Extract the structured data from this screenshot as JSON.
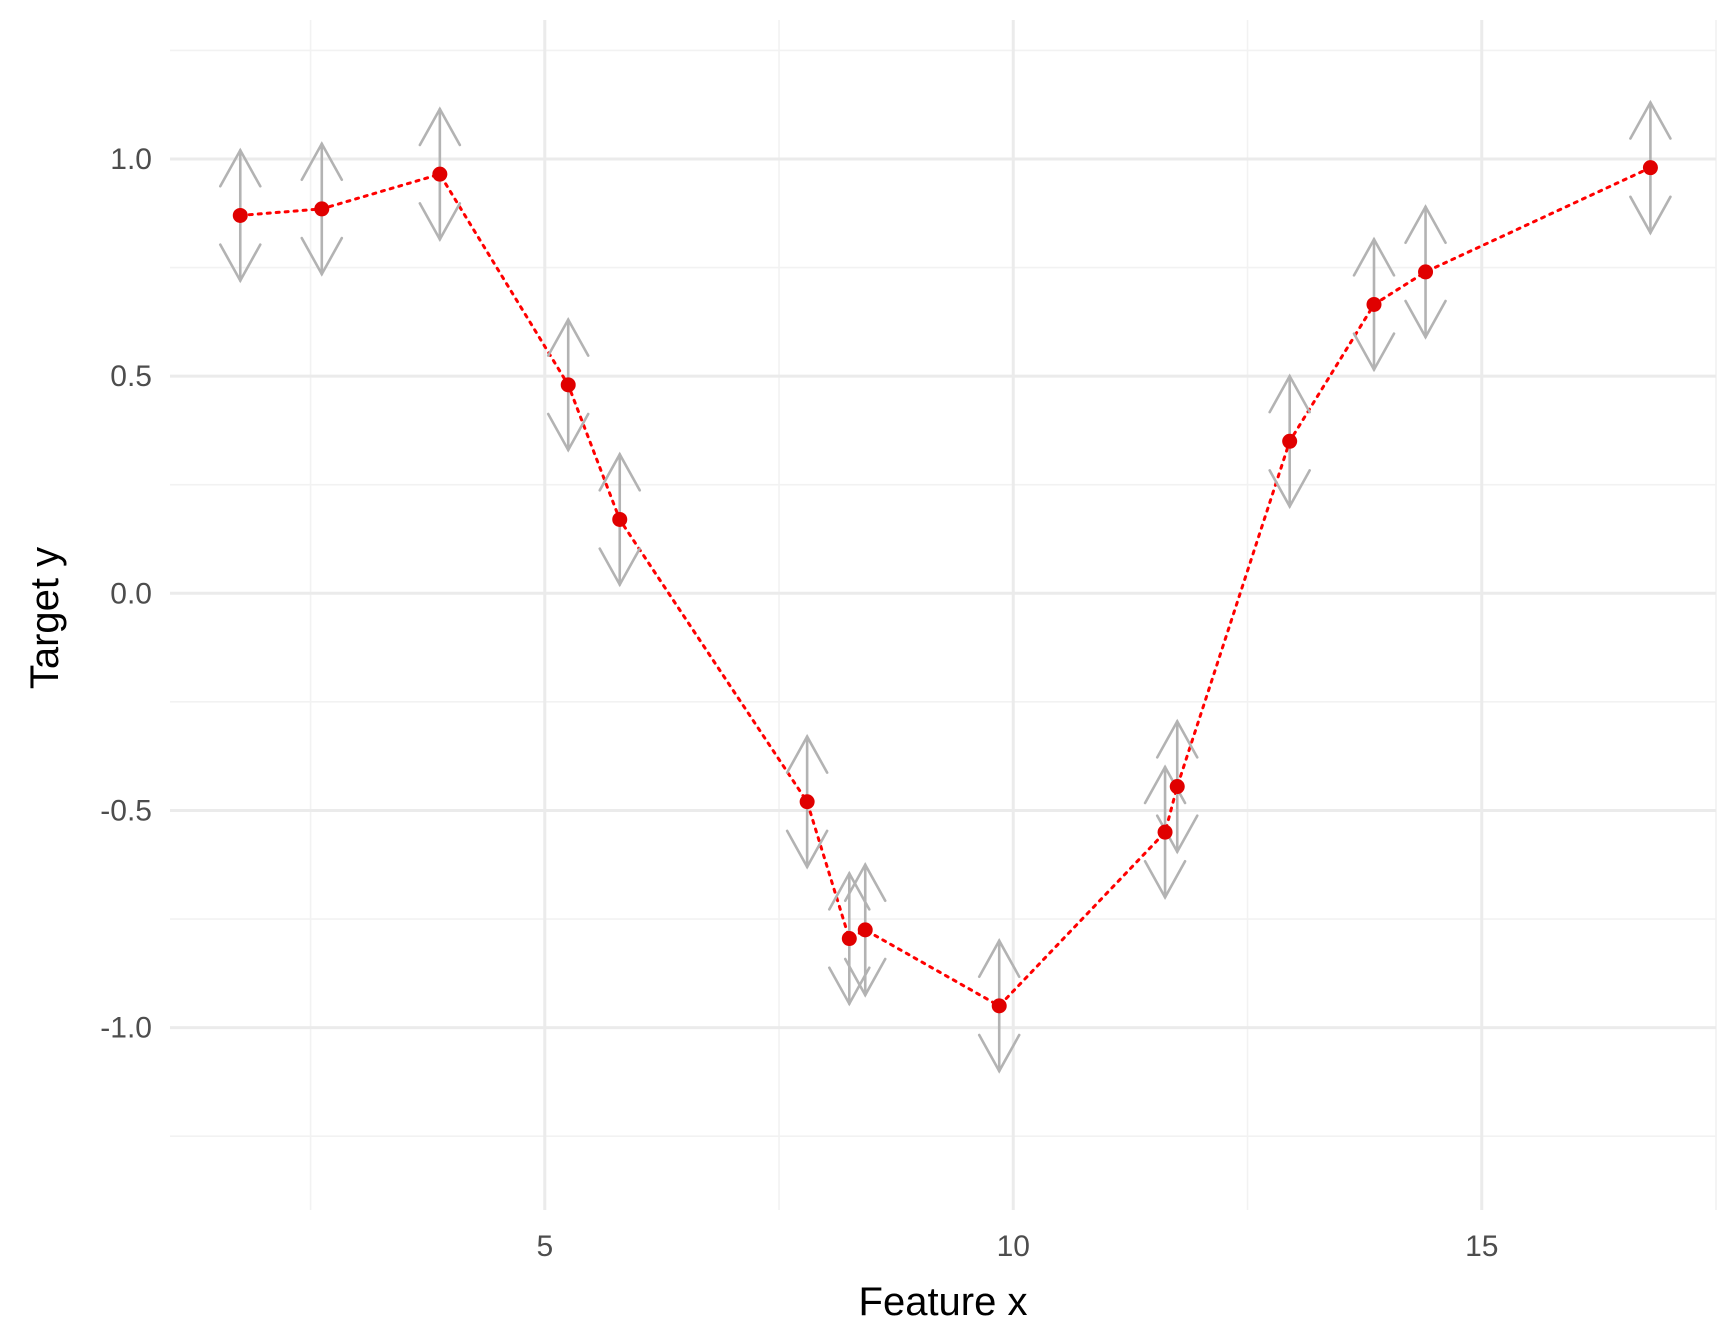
{
  "chart_data": {
    "type": "scatter",
    "xlabel": "Feature x",
    "ylabel": "Target y",
    "xlim": [
      1.0,
      17.5
    ],
    "ylim": [
      -1.42,
      1.32
    ],
    "x_ticks": [
      5,
      10,
      15
    ],
    "x_tick_labels": [
      "5",
      "10",
      "15"
    ],
    "y_ticks": [
      -1.0,
      -0.5,
      0.0,
      0.5,
      1.0
    ],
    "y_tick_labels": [
      "-1.0",
      "-0.5",
      "0.0",
      "0.5",
      "1.0"
    ],
    "grid": true,
    "legend": "none",
    "error_bar_halfwidth": 0.15,
    "connect_points": true,
    "line_style": "dotted",
    "colors": {
      "points": "#e00000",
      "line": "#ff0000",
      "error_bars": "#b3b3b3",
      "grid_major": "#ebebeb",
      "grid_minor": "#f2f2f2"
    },
    "points": [
      {
        "x": 1.75,
        "y": 0.87
      },
      {
        "x": 2.62,
        "y": 0.885
      },
      {
        "x": 3.88,
        "y": 0.965
      },
      {
        "x": 5.25,
        "y": 0.48
      },
      {
        "x": 5.8,
        "y": 0.17
      },
      {
        "x": 7.8,
        "y": -0.48
      },
      {
        "x": 8.25,
        "y": -0.795
      },
      {
        "x": 8.42,
        "y": -0.775
      },
      {
        "x": 9.85,
        "y": -0.95
      },
      {
        "x": 11.62,
        "y": -0.55
      },
      {
        "x": 11.75,
        "y": -0.445
      },
      {
        "x": 12.95,
        "y": 0.35
      },
      {
        "x": 13.85,
        "y": 0.665
      },
      {
        "x": 14.4,
        "y": 0.74
      },
      {
        "x": 16.8,
        "y": 0.98
      }
    ]
  }
}
